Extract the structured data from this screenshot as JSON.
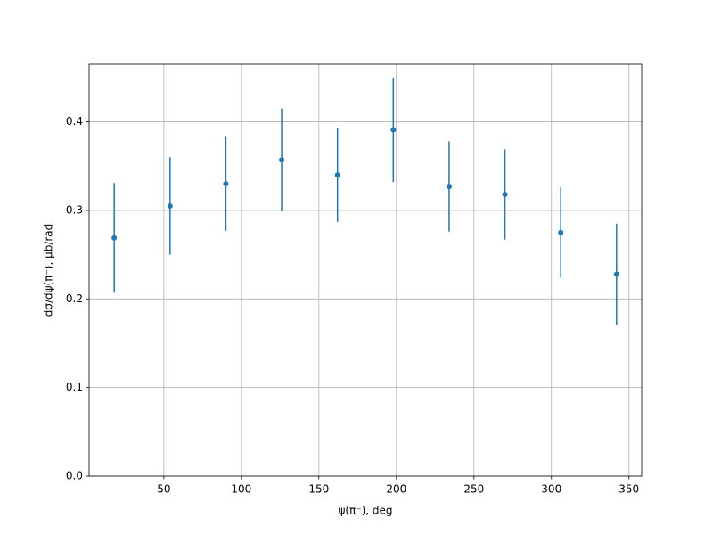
{
  "chart_data": {
    "type": "errorbar",
    "x_label": "ψ(π⁻), deg",
    "y_label": "dσ/dψ(π⁻), μb/rad",
    "x": [
      18,
      54,
      90,
      126,
      162,
      198,
      234,
      270,
      306,
      342
    ],
    "values": [
      0.269,
      0.305,
      0.33,
      0.357,
      0.34,
      0.391,
      0.327,
      0.318,
      0.275,
      0.228
    ],
    "errors": [
      0.062,
      0.055,
      0.053,
      0.058,
      0.053,
      0.059,
      0.051,
      0.051,
      0.051,
      0.057
    ],
    "color": "#1f77b4",
    "xlim": [
      1.8,
      358.2
    ],
    "ylim": [
      0,
      0.465
    ],
    "xticks": [
      50,
      100,
      150,
      200,
      250,
      300,
      350
    ],
    "yticks": [
      {
        "value": 0,
        "label": "0.0"
      },
      0.1,
      0.2,
      0.3,
      0.4
    ],
    "grid": true
  }
}
